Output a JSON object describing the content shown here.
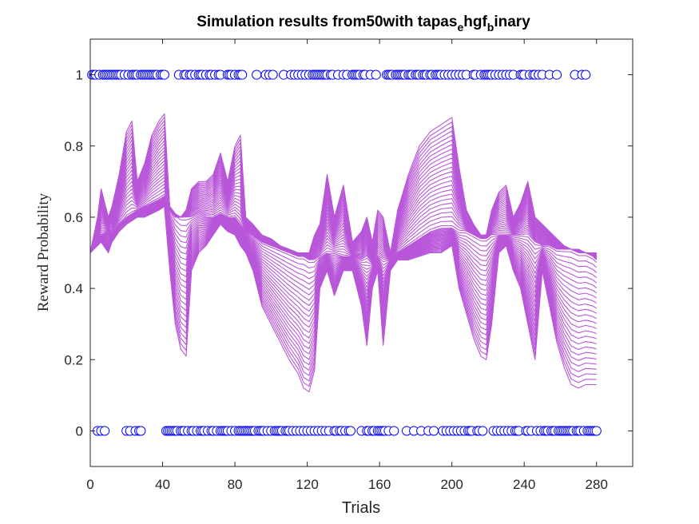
{
  "chart_data": {
    "type": "line",
    "title": {
      "parts": [
        "Simulation results from50with tapas",
        "e",
        "hgf",
        "b",
        "inary"
      ]
    },
    "xlabel": "Trials",
    "ylabel": "Reward Probability",
    "xlim": [
      0,
      300
    ],
    "ylim": [
      -0.1,
      1.1
    ],
    "xticks": [
      0,
      40,
      80,
      120,
      160,
      200,
      240,
      280
    ],
    "yticks": [
      0,
      0.2,
      0.4,
      0.6,
      0.8,
      1
    ],
    "ytick_labels": [
      "0",
      "0.2",
      "0.4",
      "0.6",
      "0.8",
      "1"
    ],
    "line_color": "#b856d9",
    "marker_color": "#0000ff",
    "n_trials": 280,
    "n_simulations": 50,
    "envelope": {
      "x": [
        0,
        4,
        6,
        10,
        12,
        16,
        20,
        23,
        26,
        30,
        34,
        38,
        41,
        44,
        47,
        50,
        53,
        56,
        60,
        64,
        68,
        72,
        76,
        80,
        83,
        86,
        90,
        95,
        100,
        105,
        110,
        115,
        118,
        121,
        124,
        127,
        131,
        135,
        140,
        145,
        150,
        153,
        156,
        159,
        162,
        166,
        170,
        176,
        182,
        188,
        194,
        200,
        204,
        208,
        212,
        216,
        219,
        222,
        226,
        230,
        234,
        238,
        242,
        246,
        250,
        254,
        258,
        262,
        266,
        270,
        274,
        278,
        280
      ],
      "mid": [
        0.5,
        0.54,
        0.55,
        0.56,
        0.55,
        0.58,
        0.6,
        0.61,
        0.62,
        0.63,
        0.64,
        0.65,
        0.66,
        0.63,
        0.61,
        0.6,
        0.6,
        0.6,
        0.61,
        0.6,
        0.6,
        0.61,
        0.6,
        0.6,
        0.58,
        0.56,
        0.55,
        0.53,
        0.52,
        0.51,
        0.5,
        0.49,
        0.49,
        0.48,
        0.48,
        0.49,
        0.5,
        0.5,
        0.49,
        0.49,
        0.48,
        0.49,
        0.47,
        0.49,
        0.48,
        0.48,
        0.5,
        0.52,
        0.54,
        0.56,
        0.57,
        0.57,
        0.56,
        0.56,
        0.55,
        0.54,
        0.54,
        0.55,
        0.55,
        0.55,
        0.55,
        0.55,
        0.55,
        0.53,
        0.52,
        0.52,
        0.51,
        0.51,
        0.51,
        0.5,
        0.5,
        0.49,
        0.48
      ],
      "up": [
        0.5,
        0.6,
        0.68,
        0.6,
        0.63,
        0.72,
        0.84,
        0.87,
        0.7,
        0.75,
        0.83,
        0.87,
        0.89,
        0.62,
        0.6,
        0.6,
        0.62,
        0.68,
        0.7,
        0.7,
        0.72,
        0.78,
        0.7,
        0.8,
        0.83,
        0.6,
        0.58,
        0.55,
        0.54,
        0.52,
        0.51,
        0.5,
        0.5,
        0.5,
        0.55,
        0.58,
        0.72,
        0.6,
        0.69,
        0.53,
        0.56,
        0.6,
        0.53,
        0.62,
        0.6,
        0.5,
        0.62,
        0.72,
        0.8,
        0.84,
        0.86,
        0.88,
        0.74,
        0.62,
        0.58,
        0.55,
        0.55,
        0.62,
        0.67,
        0.69,
        0.6,
        0.64,
        0.7,
        0.6,
        0.58,
        0.56,
        0.54,
        0.52,
        0.51,
        0.51,
        0.5,
        0.5,
        0.5
      ],
      "lo": [
        0.5,
        0.52,
        0.53,
        0.5,
        0.53,
        0.56,
        0.58,
        0.59,
        0.6,
        0.6,
        0.61,
        0.62,
        0.63,
        0.45,
        0.3,
        0.23,
        0.21,
        0.45,
        0.5,
        0.52,
        0.55,
        0.58,
        0.56,
        0.55,
        0.52,
        0.5,
        0.45,
        0.35,
        0.3,
        0.25,
        0.2,
        0.16,
        0.12,
        0.11,
        0.17,
        0.4,
        0.45,
        0.38,
        0.45,
        0.45,
        0.35,
        0.24,
        0.4,
        0.45,
        0.24,
        0.45,
        0.48,
        0.48,
        0.49,
        0.5,
        0.5,
        0.52,
        0.4,
        0.33,
        0.26,
        0.21,
        0.2,
        0.3,
        0.5,
        0.52,
        0.45,
        0.4,
        0.3,
        0.2,
        0.45,
        0.35,
        0.25,
        0.18,
        0.13,
        0.12,
        0.13,
        0.13,
        0.13
      ]
    },
    "outcomes": {
      "ones": [
        1,
        2,
        3,
        5,
        7,
        8,
        9,
        10,
        11,
        12,
        13,
        14,
        15,
        16,
        17,
        19,
        21,
        23,
        24,
        25,
        26,
        28,
        29,
        30,
        31,
        32,
        33,
        34,
        35,
        36,
        37,
        39,
        40,
        41,
        49,
        52,
        53,
        55,
        56,
        58,
        60,
        61,
        62,
        64,
        66,
        67,
        69,
        71,
        72,
        76,
        77,
        78,
        80,
        82,
        83,
        84,
        92,
        97,
        99,
        101,
        107,
        111,
        113,
        115,
        117,
        119,
        121,
        123,
        124,
        125,
        126,
        127,
        128,
        129,
        130,
        131,
        133,
        134,
        137,
        140,
        142,
        145,
        146,
        147,
        148,
        149,
        151,
        152,
        155,
        158,
        164,
        165,
        166,
        167,
        169,
        170,
        171,
        172,
        173,
        174,
        176,
        177,
        178,
        180,
        181,
        182,
        184,
        185,
        186,
        188,
        189,
        191,
        192,
        193,
        194,
        196,
        198,
        200,
        202,
        204,
        206,
        208,
        212,
        213,
        216,
        218,
        219,
        220,
        221,
        222,
        224,
        226,
        228,
        230,
        232,
        234,
        238,
        239,
        240,
        243,
        245,
        246,
        248,
        250,
        254,
        258,
        268,
        272,
        274
      ],
      "zeros": [
        4,
        6,
        8,
        20,
        22,
        25,
        27,
        28,
        42,
        43,
        44,
        45,
        46,
        47,
        48,
        50,
        51,
        52,
        54,
        56,
        57,
        59,
        61,
        62,
        63,
        65,
        67,
        68,
        70,
        72,
        73,
        74,
        75,
        76,
        78,
        80,
        82,
        83,
        84,
        85,
        86,
        87,
        88,
        89,
        90,
        91,
        93,
        94,
        95,
        96,
        98,
        100,
        102,
        103,
        104,
        105,
        106,
        108,
        109,
        110,
        112,
        114,
        116,
        118,
        120,
        122,
        124,
        126,
        128,
        130,
        132,
        135,
        136,
        138,
        139,
        141,
        143,
        144,
        150,
        153,
        154,
        156,
        157,
        159,
        160,
        161,
        162,
        163,
        165,
        168,
        175,
        179,
        183,
        187,
        190,
        195,
        197,
        199,
        201,
        203,
        205,
        207,
        209,
        210,
        211,
        214,
        215,
        217,
        223,
        225,
        227,
        229,
        231,
        233,
        235,
        236,
        237,
        241,
        242,
        244,
        247,
        249,
        251,
        252,
        253,
        255,
        256,
        257,
        259,
        260,
        261,
        262,
        263,
        264,
        265,
        266,
        267,
        269,
        270,
        271,
        273,
        275,
        276,
        277,
        278,
        279,
        280
      ]
    }
  }
}
